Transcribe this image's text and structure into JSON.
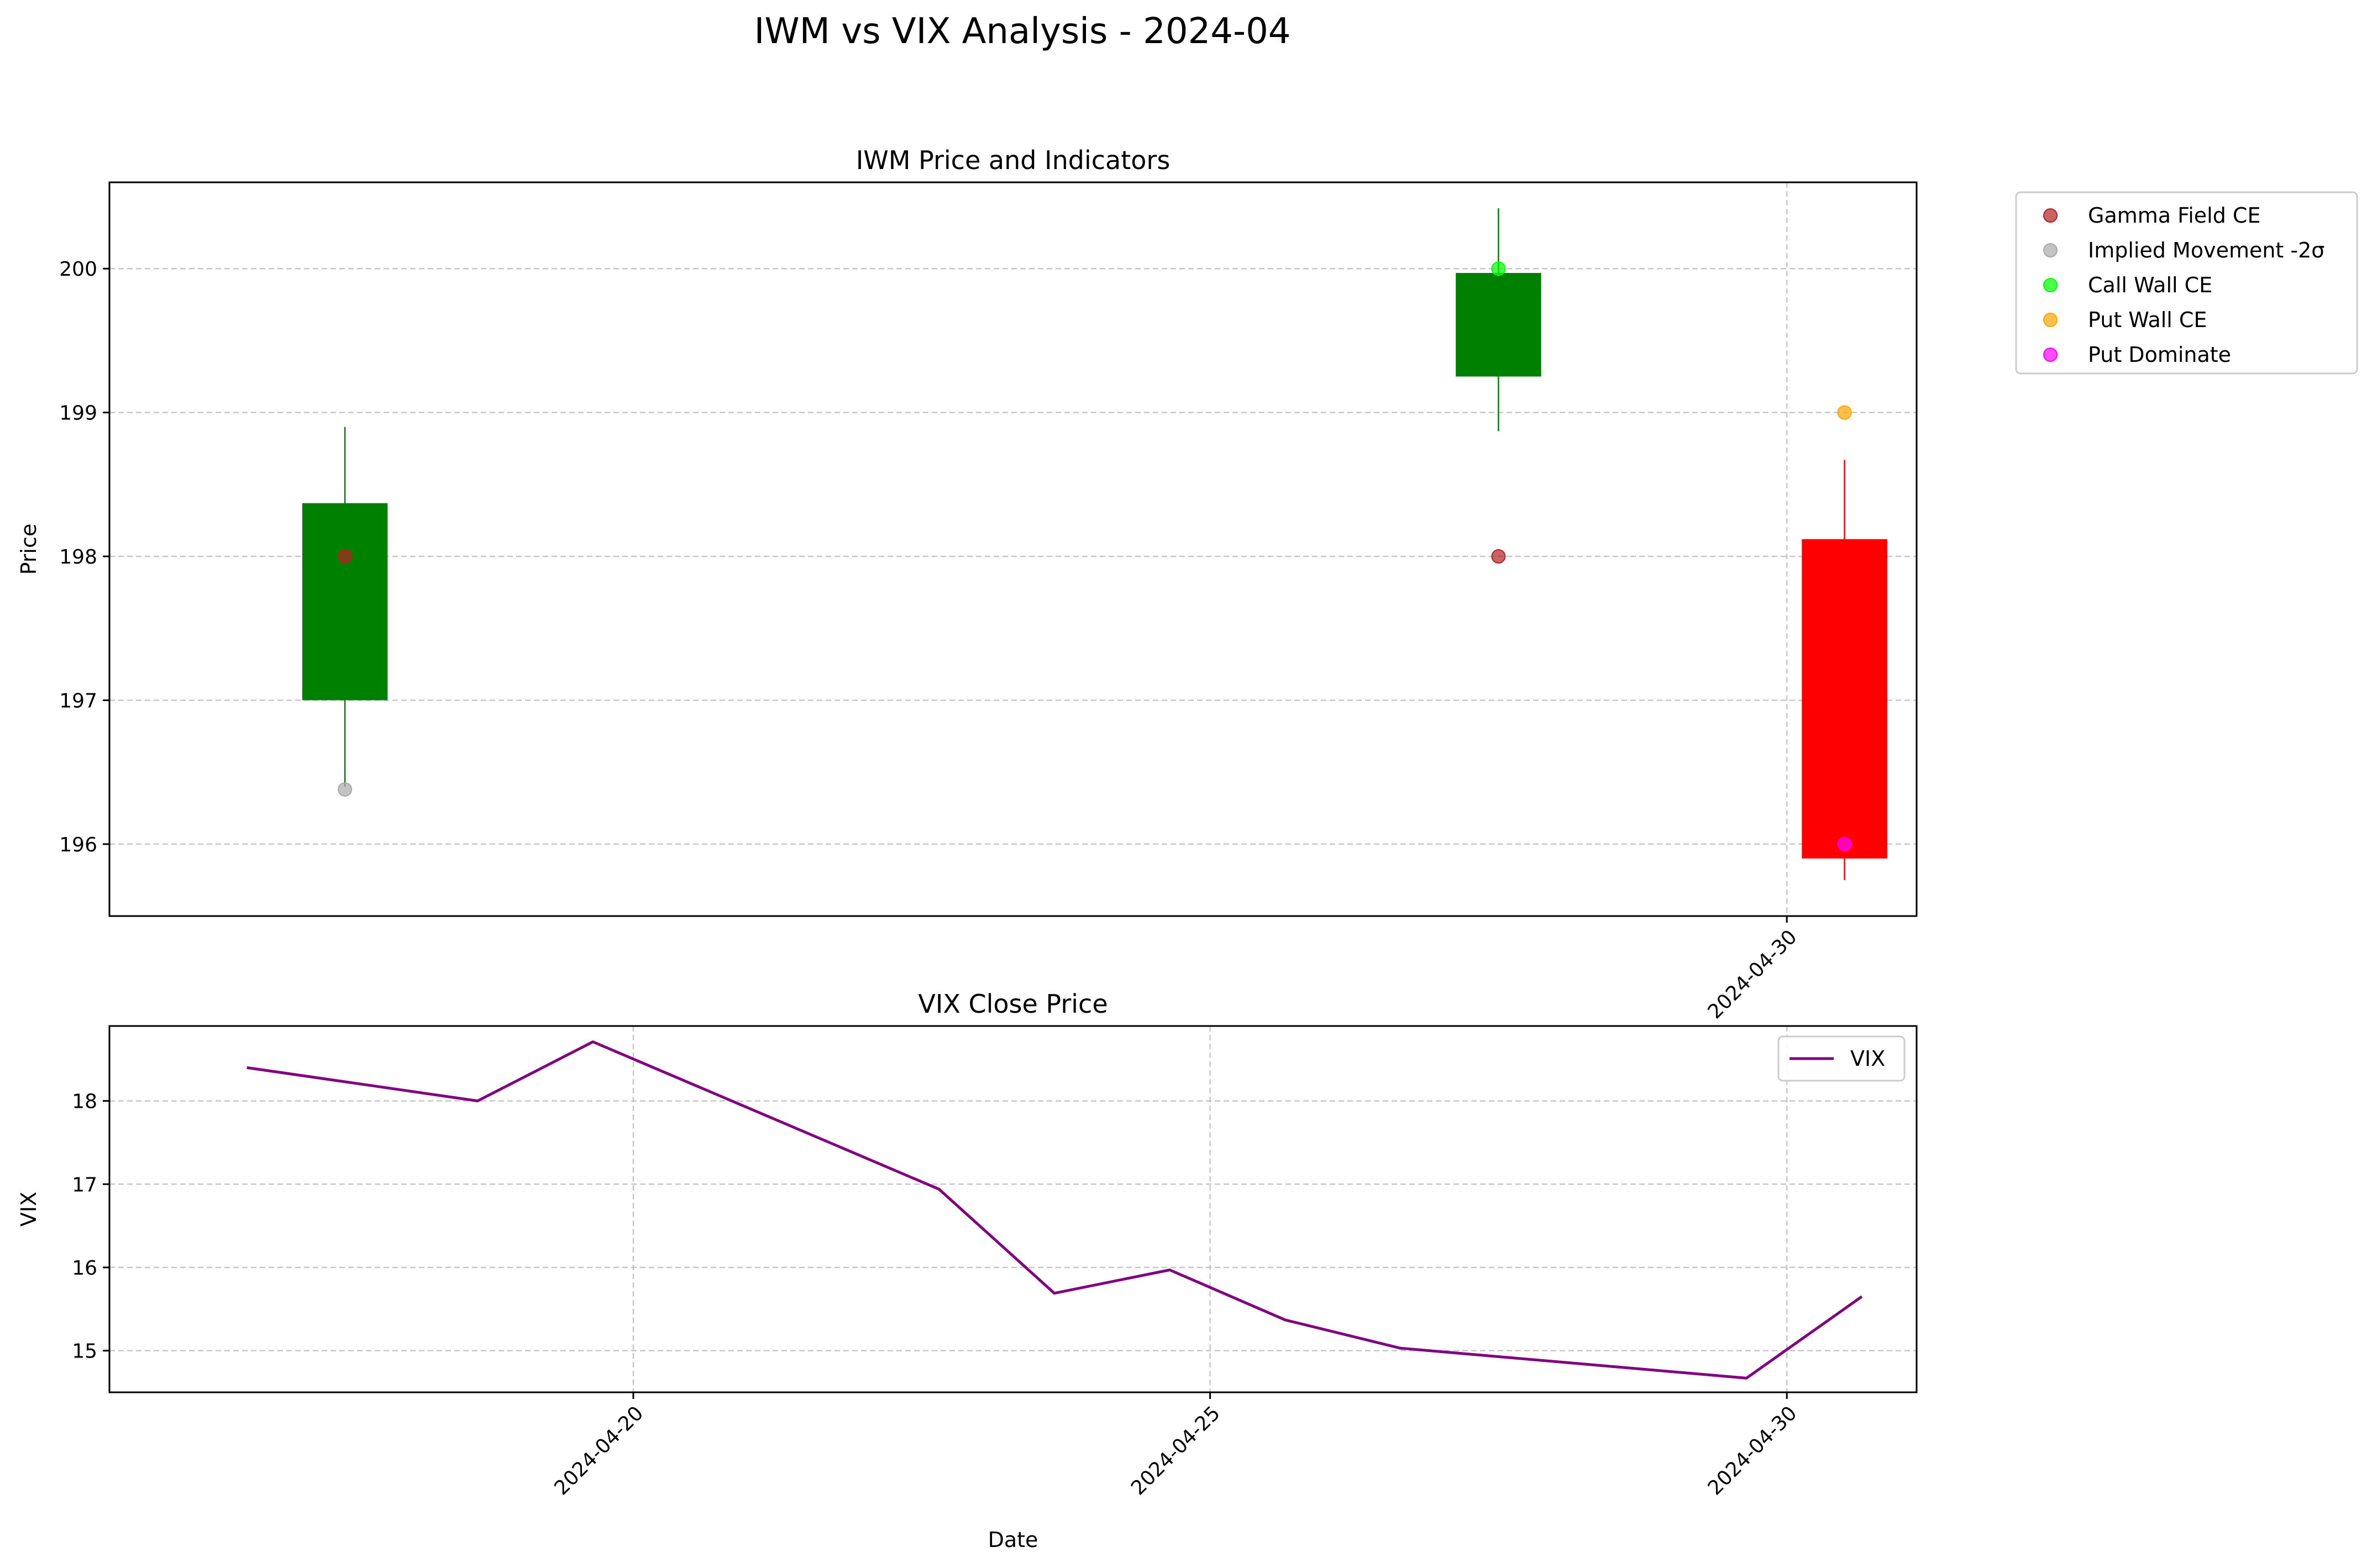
{
  "title": "IWM vs VIX Analysis - 2024-04",
  "chart_data": [
    {
      "type": "candlestick",
      "title": "IWM Price and Indicators",
      "xlabel": "",
      "ylabel": "Price",
      "ylim": [
        195.5,
        200.6
      ],
      "yticks": [
        196,
        197,
        198,
        199,
        200
      ],
      "xticks": [
        "2024-04-30"
      ],
      "grid": true,
      "legend_position": "outside-right",
      "candles": [
        {
          "date": "2024-04-17",
          "open": 197.0,
          "close": 198.37,
          "low": 196.4,
          "high": 198.9,
          "color": "#008000"
        },
        {
          "date": "2024-04-27",
          "open": 199.25,
          "close": 199.97,
          "low": 198.87,
          "high": 200.42,
          "color": "#008000"
        },
        {
          "date": "2024-04-30",
          "open": 198.12,
          "close": 195.9,
          "low": 195.75,
          "high": 198.67,
          "color": "#ff0000"
        }
      ],
      "series": [
        {
          "name": "Gamma Field CE",
          "color": "#b22222",
          "points": [
            {
              "date": "2024-04-17",
              "value": 198.0
            },
            {
              "date": "2024-04-27",
              "value": 198.0
            }
          ]
        },
        {
          "name": "Implied Movement -2σ",
          "color": "#a9a9a9",
          "points": [
            {
              "date": "2024-04-17",
              "value": 196.38
            }
          ]
        },
        {
          "name": "Call Wall CE",
          "color": "#00ff00",
          "points": [
            {
              "date": "2024-04-27",
              "value": 200.0
            }
          ]
        },
        {
          "name": "Put Wall CE",
          "color": "#ffa500",
          "points": [
            {
              "date": "2024-04-30",
              "value": 199.0
            }
          ]
        },
        {
          "name": "Put Dominate",
          "color": "#ff00ff",
          "points": [
            {
              "date": "2024-04-30",
              "value": 196.0
            }
          ]
        }
      ]
    },
    {
      "type": "line",
      "title": "VIX Close Price",
      "xlabel": "Date",
      "ylabel": "VIX",
      "ylim": [
        14.5,
        18.9
      ],
      "yticks": [
        15,
        16,
        17,
        18
      ],
      "xticks": [
        "2024-04-20",
        "2024-04-25",
        "2024-04-30"
      ],
      "grid": true,
      "legend_position": "upper right",
      "series": [
        {
          "name": "VIX",
          "color": "#800080",
          "x": [
            "2024-04-16",
            "2024-04-18",
            "2024-04-19",
            "2024-04-22",
            "2024-04-23",
            "2024-04-24",
            "2024-04-25",
            "2024-04-26",
            "2024-04-29",
            "2024-04-30"
          ],
          "values": [
            18.4,
            18.0,
            18.71,
            16.94,
            15.69,
            15.97,
            15.37,
            15.03,
            14.67,
            15.65
          ]
        }
      ]
    }
  ]
}
